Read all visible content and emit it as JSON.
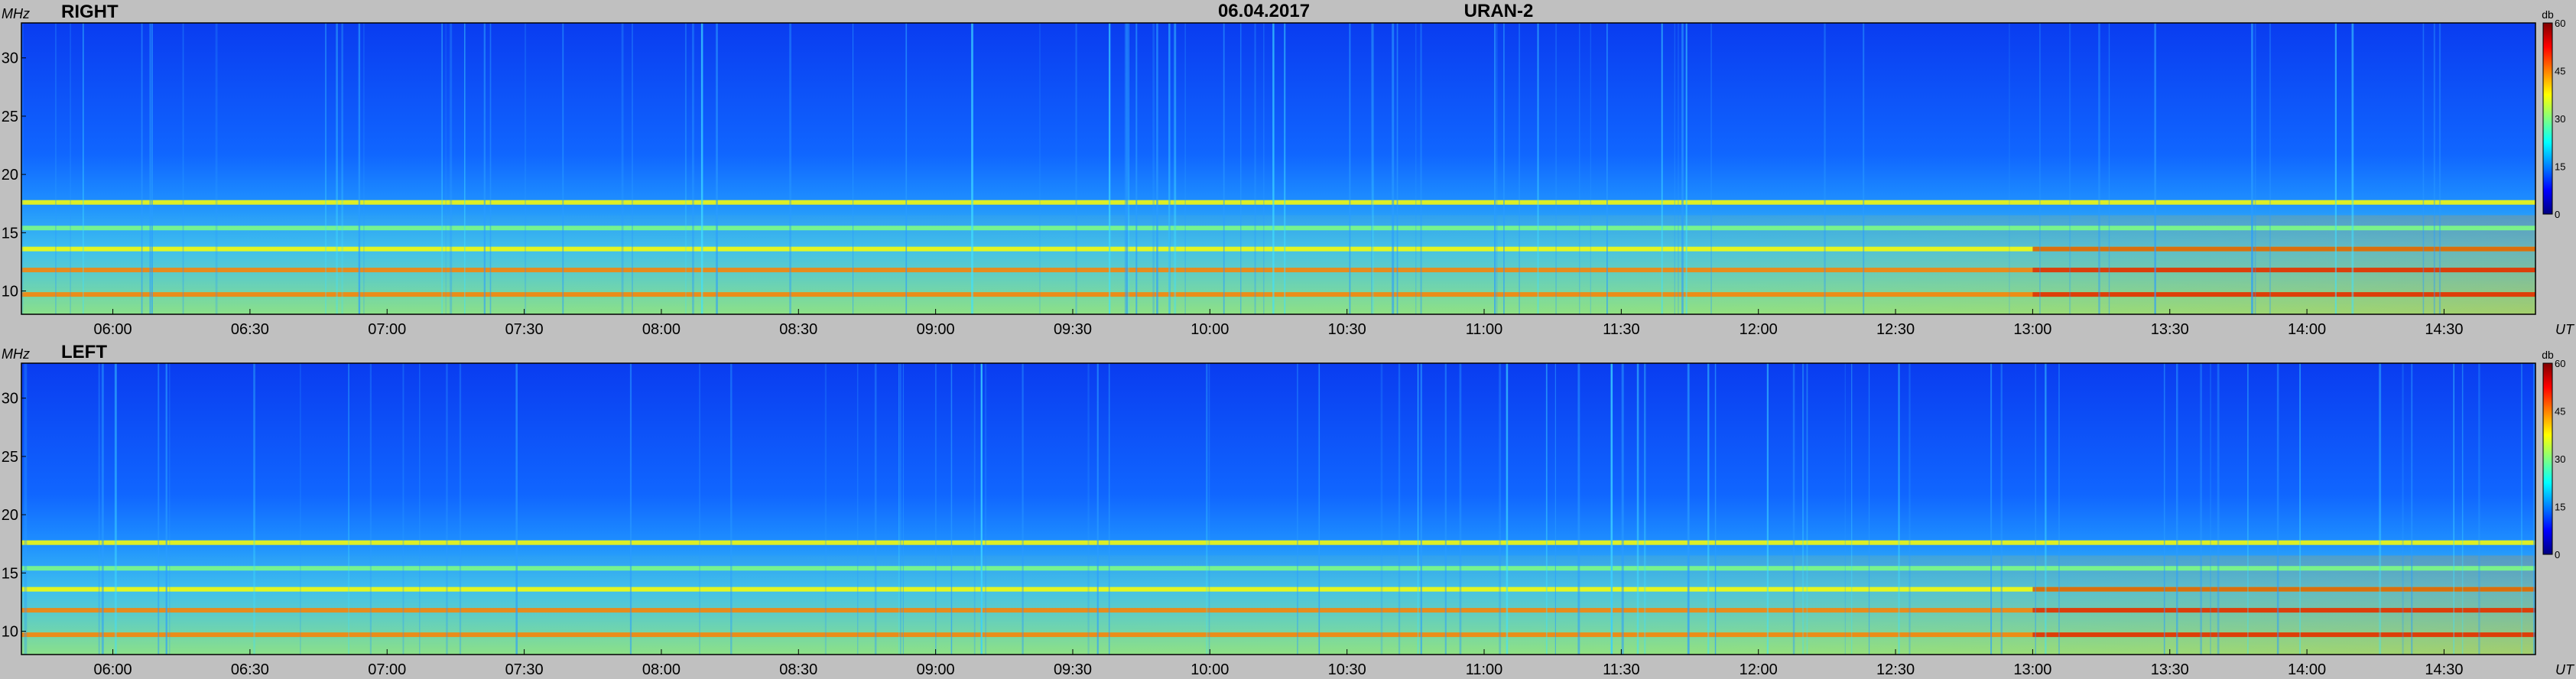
{
  "header": {
    "date": "06.04.2017",
    "instrument": "URAN-2"
  },
  "colors": {
    "background": "#c0c0c0",
    "colormap": [
      "#00007f",
      "#0000ff",
      "#0080ff",
      "#00ffff",
      "#80ff80",
      "#ffff00",
      "#ff8000",
      "#ff0000",
      "#7f0000"
    ]
  },
  "chart_data": [
    {
      "type": "heatmap",
      "title": "RIGHT",
      "ylabel": "MHz",
      "xlabel": "UT",
      "ylim": [
        8,
        33
      ],
      "xlim": [
        "05:40",
        "14:50"
      ],
      "y_ticks": [
        "10",
        "15",
        "20",
        "25",
        "30"
      ],
      "x_ticks": [
        "06:00",
        "06:30",
        "07:00",
        "07:30",
        "08:00",
        "08:30",
        "09:00",
        "09:30",
        "10:00",
        "10:30",
        "11:00",
        "11:30",
        "12:00",
        "12:30",
        "13:00",
        "13:30",
        "14:00",
        "14:30"
      ],
      "colorbar": {
        "label": "db",
        "range": [
          0,
          60
        ],
        "ticks": [
          "0",
          "15",
          "30",
          "45",
          "60"
        ]
      },
      "bands_mhz": [
        {
          "freq": 17.6,
          "level_db": 36
        },
        {
          "freq": 15.4,
          "level_db": 32
        },
        {
          "freq": 13.6,
          "level_db": 38
        },
        {
          "freq": 11.8,
          "level_db": 42
        },
        {
          "freq": 9.7,
          "level_db": 44
        }
      ]
    },
    {
      "type": "heatmap",
      "title": "LEFT",
      "ylabel": "MHz",
      "xlabel": "UT",
      "ylim": [
        8,
        33
      ],
      "xlim": [
        "05:40",
        "14:50"
      ],
      "y_ticks": [
        "10",
        "15",
        "20",
        "25",
        "30"
      ],
      "x_ticks": [
        "06:00",
        "06:30",
        "07:00",
        "07:30",
        "08:00",
        "08:30",
        "09:00",
        "09:30",
        "10:00",
        "10:30",
        "11:00",
        "11:30",
        "12:00",
        "12:30",
        "13:00",
        "13:30",
        "14:00",
        "14:30"
      ],
      "colorbar": {
        "label": "db",
        "range": [
          0,
          60
        ],
        "ticks": [
          "0",
          "15",
          "30",
          "45",
          "60"
        ]
      },
      "bands_mhz": [
        {
          "freq": 17.6,
          "level_db": 36
        },
        {
          "freq": 15.4,
          "level_db": 32
        },
        {
          "freq": 13.6,
          "level_db": 38
        },
        {
          "freq": 11.8,
          "level_db": 42
        },
        {
          "freq": 9.7,
          "level_db": 44
        }
      ]
    }
  ]
}
